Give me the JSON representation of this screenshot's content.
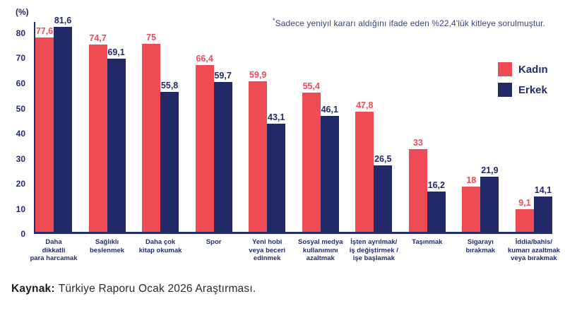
{
  "annotation": {
    "sup": "*",
    "text": "Sadece yeniyıl kararı aldığını ifade eden %22,4'lük kitleye sorulmuştur."
  },
  "source": {
    "label": "Kaynak:",
    "text": "Türkiye Raporu Ocak 2026 Araştırması."
  },
  "colors": {
    "kadin_red": "#ef4b54",
    "erkek_navy": "#212a66",
    "axis_navy": "#242c69",
    "background": "#ffffff"
  },
  "chart_data": {
    "type": "bar",
    "title": "",
    "unit_label": "(%)",
    "grid": false,
    "legend_position": "right",
    "yticks": [
      0,
      10,
      20,
      30,
      40,
      50,
      60,
      70,
      80
    ],
    "ylim": [
      0,
      84.5
    ],
    "categories": [
      "Daha\ndikkatli\npara harcamak",
      "Sağlıklı\nbeslenmek",
      "Daha çok\nkitap okumak",
      "Spor",
      "Yeni hobi\nveya beceri\nedinmek",
      "Sosyal medya\nkullanımını\nazaltmak",
      "İşten ayrılmak/\niş değiştirmek /\nişe başlamak",
      "Taşınmak",
      "Sigarayı\nbırakmak",
      "İddia/bahis/\nkumarı azaltmak\nveya bırakmak"
    ],
    "series": [
      {
        "name": "Kadın",
        "color": "#ef4b54",
        "values": [
          77.6,
          74.7,
          75,
          66.4,
          59.9,
          55.4,
          47.8,
          33,
          18,
          9.1
        ],
        "labels": [
          "77,6",
          "74,7",
          "75",
          "66,4",
          "59,9",
          "55,4",
          "47,8",
          "33",
          "18",
          "9,1"
        ]
      },
      {
        "name": "Erkek",
        "color": "#212a66",
        "values": [
          81.6,
          69.1,
          55.8,
          59.7,
          43.1,
          46.1,
          26.5,
          16.2,
          21.9,
          14.1
        ],
        "labels": [
          "81,6",
          "69,1",
          "55,8",
          "59,7",
          "43,1",
          "46,1",
          "26,5",
          "16,2",
          "21,9",
          "14,1"
        ]
      }
    ]
  }
}
